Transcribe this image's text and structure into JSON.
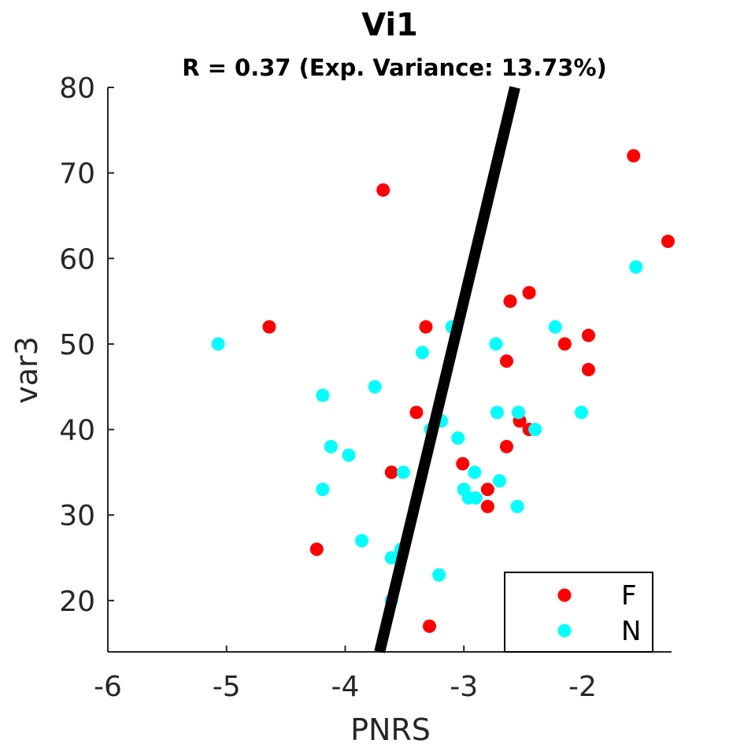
{
  "chart_data": {
    "type": "scatter",
    "title": "Vi1",
    "subtitle": "R = 0.37 (Exp. Variance: 13.73%)",
    "xlabel": "PNRS",
    "ylabel": "var3",
    "xlim": [
      -6,
      -1.25
    ],
    "ylim": [
      14,
      80
    ],
    "xticks": [
      -6,
      -5,
      -4,
      -3,
      -2
    ],
    "yticks": [
      20,
      30,
      40,
      50,
      60,
      70,
      80
    ],
    "grid": false,
    "legend_position": "bottom-right",
    "fit_line": {
      "color": "#000000",
      "points": [
        [
          -3.71,
          14
        ],
        [
          -2.57,
          80
        ]
      ]
    },
    "series": [
      {
        "name": "F",
        "color": "#ff0000",
        "points": [
          [
            -3.68,
            68
          ],
          [
            -4.64,
            52
          ],
          [
            -3.32,
            52
          ],
          [
            -3.4,
            42
          ],
          [
            -3.61,
            35
          ],
          [
            -4.24,
            26
          ],
          [
            -3.29,
            17
          ],
          [
            -3.01,
            36
          ],
          [
            -2.8,
            33
          ],
          [
            -2.8,
            31
          ],
          [
            -2.64,
            38
          ],
          [
            -2.64,
            48
          ],
          [
            -2.61,
            55
          ],
          [
            -2.45,
            56
          ],
          [
            -2.53,
            41
          ],
          [
            -2.45,
            40
          ],
          [
            -2.15,
            50
          ],
          [
            -1.95,
            51
          ],
          [
            -1.95,
            47
          ],
          [
            -1.57,
            72
          ],
          [
            -1.28,
            62
          ]
        ]
      },
      {
        "name": "N",
        "color": "#00ffff",
        "points": [
          [
            -5.07,
            50
          ],
          [
            -4.19,
            44
          ],
          [
            -4.12,
            38
          ],
          [
            -3.97,
            37
          ],
          [
            -4.19,
            33
          ],
          [
            -3.86,
            27
          ],
          [
            -3.75,
            45
          ],
          [
            -3.61,
            25
          ],
          [
            -3.53,
            26
          ],
          [
            -3.61,
            20
          ],
          [
            -3.51,
            35
          ],
          [
            -3.35,
            49
          ],
          [
            -3.28,
            40
          ],
          [
            -3.19,
            41
          ],
          [
            -3.1,
            52
          ],
          [
            -3.05,
            39
          ],
          [
            -3.21,
            23
          ],
          [
            -3.0,
            33
          ],
          [
            -2.96,
            32
          ],
          [
            -2.9,
            32
          ],
          [
            -2.91,
            35
          ],
          [
            -2.7,
            34
          ],
          [
            -2.72,
            42
          ],
          [
            -2.73,
            50
          ],
          [
            -2.54,
            42
          ],
          [
            -2.55,
            31
          ],
          [
            -2.4,
            40
          ],
          [
            -2.23,
            52
          ],
          [
            -2.01,
            42
          ],
          [
            -1.55,
            59
          ]
        ]
      }
    ]
  }
}
